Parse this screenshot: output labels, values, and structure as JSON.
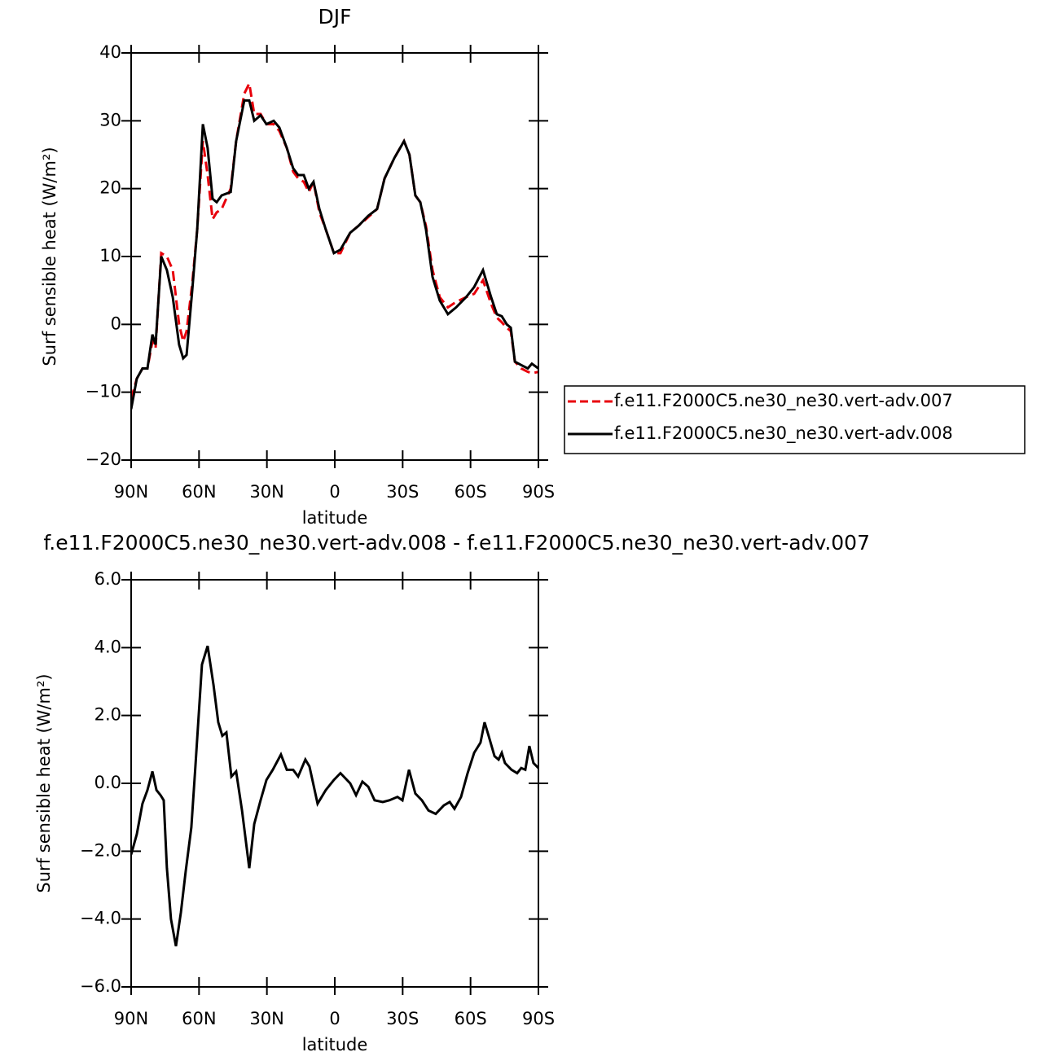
{
  "chart_data": [
    {
      "type": "line",
      "title": "DJF",
      "xlabel": "latitude",
      "ylabel": "Surf sensible heat (W/m²)",
      "x": [
        90,
        87.5,
        85,
        82.8,
        80.6,
        79.2,
        76.7,
        74.2,
        71.6,
        68.8,
        67,
        65.5,
        63,
        60.8,
        58.3,
        56.2,
        54,
        52.2,
        50,
        46,
        43.6,
        40,
        37.8,
        35.6,
        32.8,
        30.2,
        27,
        24.5,
        21.2,
        18.4,
        16.2,
        13.7,
        11.5,
        9.4,
        6.8,
        4,
        0.4,
        -2.5,
        -6.8,
        -10.4,
        -14.8,
        -18.7,
        -22,
        -26.3,
        -30.6,
        -33,
        -35.6,
        -37.8,
        -40.3,
        -43.2,
        -46.4,
        -50,
        -53.6,
        -58,
        -61.6,
        -65.5,
        -69.1,
        -71.6,
        -73.8,
        -76,
        -77.8,
        -79.6,
        -82.4,
        -85.3,
        -87.1,
        -90
      ],
      "series": [
        {
          "name": "f.e11.F2000C5.ne30_ne30.vert-adv.007",
          "color": "#e8000b",
          "line_style": "dashed",
          "values": [
            -11,
            -8,
            -6.5,
            -6.5,
            -2.5,
            -3.5,
            10.5,
            10,
            8,
            0,
            -2.5,
            -1,
            6,
            14,
            27,
            22,
            15.5,
            16.5,
            17,
            20,
            27,
            34,
            35.5,
            31,
            31,
            29.5,
            29.5,
            28.5,
            26,
            22.5,
            21.5,
            21,
            19.5,
            21,
            16.5,
            14,
            10.5,
            10.5,
            13.5,
            14.5,
            15.8,
            17,
            21.5,
            24.5,
            27,
            25,
            19,
            18,
            14.5,
            8,
            4,
            2.5,
            3.3,
            4,
            4.5,
            6.5,
            3,
            1,
            0.3,
            -0.5,
            -1,
            -5.5,
            -6.5,
            -7,
            -7.2,
            -7
          ]
        },
        {
          "name": "f.e11.F2000C5.ne30_ne30.vert-adv.008",
          "color": "#000000",
          "line_style": "solid",
          "values": [
            -12.5,
            -8,
            -6.5,
            -6.5,
            -1.5,
            -3,
            10,
            8,
            4,
            -3,
            -5,
            -4.5,
            5,
            14,
            29.5,
            26,
            18.5,
            18,
            19,
            19.5,
            27,
            33,
            33,
            30,
            30.8,
            29.5,
            30,
            29,
            26,
            23,
            22,
            22,
            20,
            21,
            17,
            14,
            10.5,
            11,
            13.5,
            14.5,
            16,
            17,
            21.5,
            24.5,
            27,
            25,
            19,
            18,
            14,
            7,
            3.5,
            1.5,
            2.5,
            4,
            5.5,
            8,
            4,
            1.5,
            1.2,
            0,
            -0.5,
            -5.5,
            -6,
            -6.5,
            -5.8,
            -6.5
          ]
        }
      ],
      "xlim": [
        90,
        -90
      ],
      "ylim": [
        -20,
        40
      ],
      "xticks": [
        {
          "value": 90,
          "label": "90N"
        },
        {
          "value": 60,
          "label": "60N"
        },
        {
          "value": 30,
          "label": "30N"
        },
        0,
        {
          "value": -30,
          "label": "30S"
        },
        {
          "value": -60,
          "label": "60S"
        },
        {
          "value": -90,
          "label": "90S"
        }
      ],
      "yticks": [
        {
          "value": -20,
          "label": "−20"
        },
        {
          "value": -10,
          "label": "−10"
        },
        0,
        10,
        20,
        30,
        40
      ],
      "legend": "outside-right"
    },
    {
      "type": "line",
      "title": "f.e11.F2000C5.ne30_ne30.vert-adv.008 - f.e11.F2000C5.ne30_ne30.vert-adv.007",
      "xlabel": "latitude",
      "ylabel": "Surf sensible heat (W/m²)",
      "x": [
        90,
        87.5,
        85,
        82.8,
        80.6,
        78.8,
        77,
        75.6,
        74.2,
        72.4,
        70.2,
        68,
        65.9,
        63.4,
        61.6,
        58.7,
        56.2,
        53.6,
        51.5,
        49.7,
        47.9,
        45.7,
        43.6,
        41,
        37.8,
        35.6,
        32.8,
        30.2,
        27.4,
        23.8,
        21.2,
        18.4,
        16.2,
        13,
        11.2,
        7.6,
        4,
        0.4,
        -2.5,
        -6.8,
        -9.4,
        -12.2,
        -14.8,
        -17.6,
        -21.2,
        -24.1,
        -27.7,
        -29.9,
        -32.8,
        -35.6,
        -38.5,
        -41.4,
        -44.6,
        -48.2,
        -50.8,
        -52.9,
        -55.8,
        -58.7,
        -61.6,
        -64.4,
        -66.2,
        -68,
        -70.6,
        -72.4,
        -73.8,
        -75.2,
        -78.1,
        -80.6,
        -82.4,
        -84.2,
        -86,
        -87.8,
        -90
      ],
      "series": [
        {
          "color": "#000000",
          "line_style": "solid",
          "values": [
            -2.1,
            -1.5,
            -0.6,
            -0.2,
            0.35,
            -0.2,
            -0.35,
            -0.5,
            -2.5,
            -4.0,
            -4.8,
            -3.8,
            -2.6,
            -1.3,
            0.5,
            3.5,
            4.05,
            2.9,
            1.8,
            1.4,
            1.5,
            0.2,
            0.35,
            -0.8,
            -2.5,
            -1.2,
            -0.5,
            0.1,
            0.4,
            0.85,
            0.4,
            0.4,
            0.2,
            0.7,
            0.5,
            -0.6,
            -0.2,
            0.1,
            0.3,
            0,
            -0.35,
            0.05,
            -0.1,
            -0.5,
            -0.55,
            -0.5,
            -0.4,
            -0.5,
            0.4,
            -0.3,
            -0.5,
            -0.8,
            -0.9,
            -0.65,
            -0.55,
            -0.75,
            -0.4,
            0.3,
            0.9,
            1.2,
            1.8,
            1.4,
            0.8,
            0.7,
            0.9,
            0.6,
            0.4,
            0.3,
            0.45,
            0.4,
            1.1,
            0.6,
            0.45
          ]
        }
      ],
      "xlim": [
        90,
        -90
      ],
      "ylim": [
        -6,
        6
      ],
      "xticks": [
        {
          "value": 90,
          "label": "90N"
        },
        {
          "value": 60,
          "label": "60N"
        },
        {
          "value": 30,
          "label": "30N"
        },
        0,
        {
          "value": -30,
          "label": "30S"
        },
        {
          "value": -60,
          "label": "60S"
        },
        {
          "value": -90,
          "label": "90S"
        }
      ],
      "yticks": [
        {
          "value": -6,
          "label": "−6.0"
        },
        {
          "value": -4,
          "label": "−4.0"
        },
        {
          "value": -2,
          "label": "−2.0"
        },
        {
          "value": 0,
          "label": "0.0"
        },
        {
          "value": 2,
          "label": "2.0"
        },
        {
          "value": 4,
          "label": "4.0"
        },
        {
          "value": 6,
          "label": "6.0"
        }
      ]
    }
  ]
}
